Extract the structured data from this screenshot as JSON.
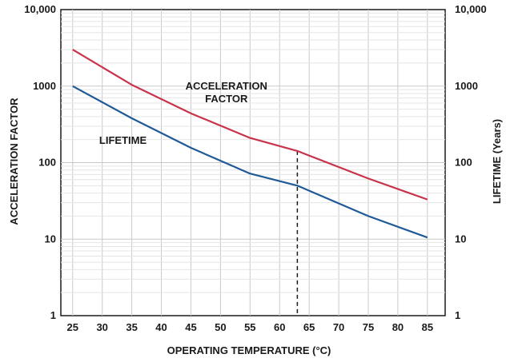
{
  "chart_data": {
    "type": "line",
    "title": "",
    "xlabel": "OPERATING TEMPERATURE (°C)",
    "ylabel_left": "ACCELERATION FACTOR",
    "ylabel_right": "LIFETIME (Years)",
    "x_ticks": [
      25,
      30,
      35,
      40,
      45,
      50,
      55,
      60,
      65,
      70,
      75,
      80,
      85
    ],
    "xlim": [
      23,
      88
    ],
    "y_scale": "log",
    "ylim": [
      1,
      10000
    ],
    "y_ticks": [
      1,
      10,
      100,
      1000,
      10000
    ],
    "y_tick_labels": [
      "1",
      "10",
      "100",
      "1000",
      "10,000"
    ],
    "grid": true,
    "series": [
      {
        "name": "ACCELERATION FACTOR",
        "color": "#c8334a",
        "x": [
          25,
          35,
          45,
          55,
          63,
          75,
          85
        ],
        "y": [
          3000,
          1040,
          440,
          210,
          142,
          62,
          33
        ]
      },
      {
        "name": "LIFETIME",
        "color": "#1f5a96",
        "x": [
          25,
          35,
          45,
          55,
          63,
          75,
          85
        ],
        "y": [
          1000,
          380,
          156,
          72,
          50,
          20,
          10.5
        ]
      }
    ],
    "reference_line": {
      "x": 63,
      "style": "dashed",
      "y_top": 142
    },
    "annotations": [
      {
        "text_lines": [
          "ACCELERATION",
          "FACTOR"
        ],
        "x": 51,
        "y": 900,
        "series": "ACCELERATION FACTOR"
      },
      {
        "text_lines": [
          "LIFETIME"
        ],
        "x": 33.5,
        "y": 175,
        "series": "LIFETIME"
      }
    ]
  }
}
